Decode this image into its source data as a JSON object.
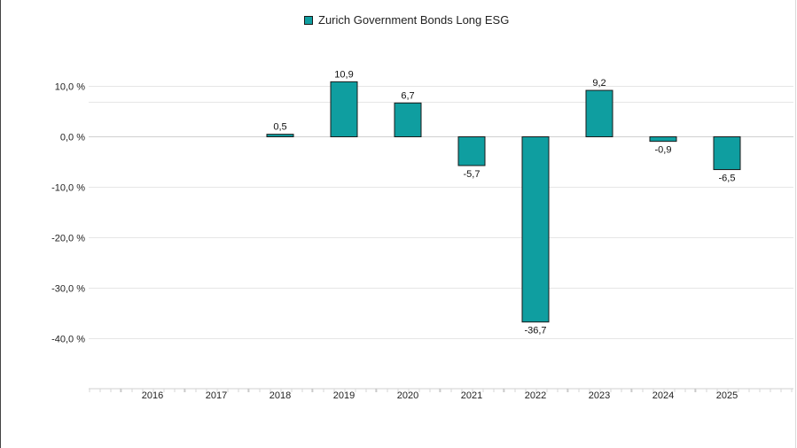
{
  "chart_data": {
    "type": "bar",
    "categories": [
      "2016",
      "2017",
      "2018",
      "2019",
      "2020",
      "2021",
      "2022",
      "2023",
      "2024",
      "2025"
    ],
    "series": [
      {
        "name": "Zurich Government Bonds Long ESG",
        "values": [
          null,
          null,
          0.5,
          10.9,
          6.7,
          -5.7,
          -36.7,
          9.2,
          -0.9,
          -6.5
        ],
        "labels": [
          "",
          "",
          "0,5",
          "10,9",
          "6,7",
          "-5,7",
          "-36,7",
          "9,2",
          "-0,9",
          "-6,5"
        ],
        "color": "#0f9ea0"
      }
    ],
    "yticks": [
      10,
      0,
      -10,
      -20,
      -30,
      -40
    ],
    "ytick_labels": [
      "10,0 %",
      "0,0 %",
      "-10,0 %",
      "-20,0 %",
      "-30,0 %",
      "-40,0 %"
    ],
    "ylim": [
      -50,
      20
    ],
    "grid": true,
    "legend_position": "top-center"
  }
}
